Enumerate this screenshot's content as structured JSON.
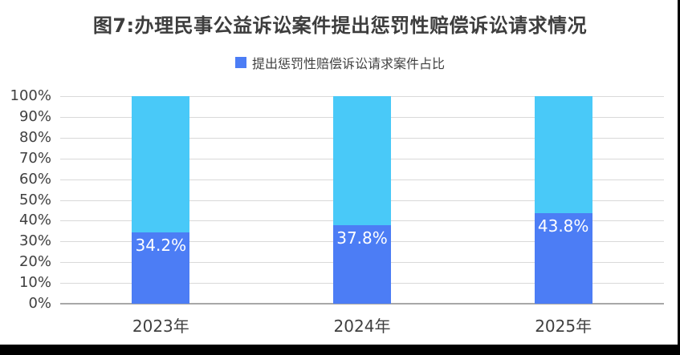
{
  "title": {
    "text": "图7:办理民事公益诉讼案件提出惩罚性赔偿诉讼请求情况",
    "color": "#3d3d3d"
  },
  "legend": {
    "position": "top",
    "items": [
      {
        "label": "提出惩罚性赔偿诉讼请求案件占比",
        "color": "#4c7df5"
      }
    ]
  },
  "chart_data": {
    "type": "bar",
    "stacked": true,
    "title": "图7:办理民事公益诉讼案件提出惩罚性赔偿诉讼请求情况",
    "categories": [
      "2023年",
      "2024年",
      "2025年"
    ],
    "series": [
      {
        "name": "提出惩罚性赔偿诉讼请求案件占比",
        "color": "#4c7df5",
        "values": [
          34.2,
          37.8,
          43.8
        ],
        "data_labels": [
          "34.2%",
          "37.8%",
          "43.8%"
        ],
        "data_label_color": "#ffffff",
        "in_legend": true
      },
      {
        "name": "remainder",
        "color": "#49c9f8",
        "values": [
          65.8,
          62.2,
          56.2
        ],
        "data_labels": [
          "",
          "",
          ""
        ],
        "in_legend": false
      }
    ],
    "xlabel": "",
    "ylabel": "",
    "ylim": [
      0,
      100
    ],
    "y_ticks": [
      "0%",
      "10%",
      "20%",
      "30%",
      "40%",
      "50%",
      "60%",
      "70%",
      "80%",
      "90%",
      "100%"
    ],
    "grid": true,
    "gridline_color": "#d9d9d9",
    "axis_line_color": "#a8a8a8",
    "tick_label_color": "#404040",
    "legend_position": "top"
  },
  "page": {
    "background": "#ffffff",
    "right_border_color": "#000000",
    "bottom_strip_color": "#000000"
  }
}
